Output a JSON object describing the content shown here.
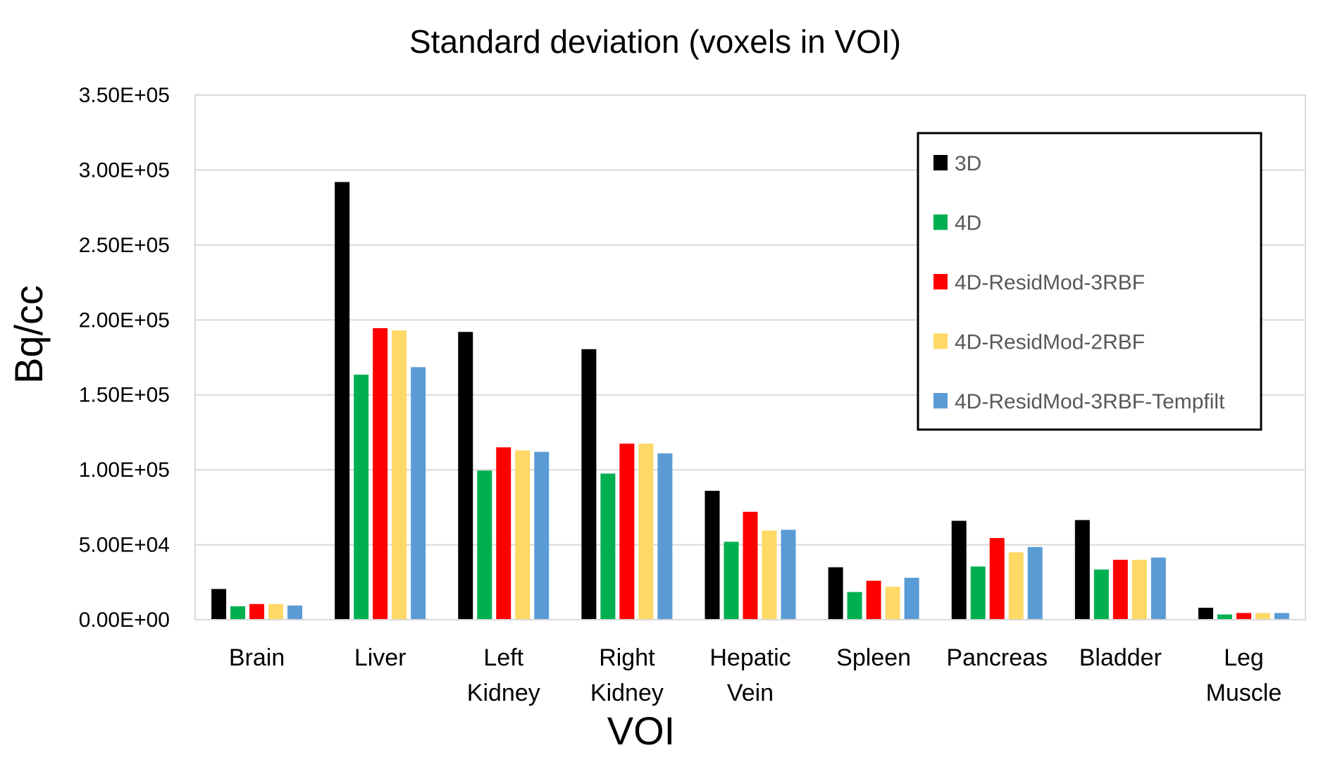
{
  "chart_data": {
    "type": "bar",
    "title": "Standard deviation (voxels in VOI)",
    "xlabel": "VOI",
    "ylabel": "Bq/cc",
    "ylim": [
      0,
      350000
    ],
    "ytick_values": [
      0,
      50000,
      100000,
      150000,
      200000,
      250000,
      300000,
      350000
    ],
    "ytick_labels": [
      "0.00E+00",
      "5.00E+04",
      "1.00E+05",
      "1.50E+05",
      "2.00E+05",
      "2.50E+05",
      "3.00E+05",
      "3.50E+05"
    ],
    "categories": [
      [
        "Brain"
      ],
      [
        "Liver"
      ],
      [
        "Left",
        "Kidney"
      ],
      [
        "Right",
        "Kidney"
      ],
      [
        "Hepatic",
        "Vein"
      ],
      [
        "Spleen"
      ],
      [
        "Pancreas"
      ],
      [
        "Bladder"
      ],
      [
        "Leg",
        "Muscle"
      ]
    ],
    "grid": "horizontal",
    "legend_position": "top-right",
    "series": [
      {
        "name": "3D",
        "color": "#000000",
        "values": [
          20500,
          292000,
          192000,
          180500,
          86000,
          35000,
          66000,
          66500,
          8000
        ]
      },
      {
        "name": "4D",
        "color": "#00b050",
        "values": [
          9000,
          163500,
          99500,
          97500,
          52000,
          18500,
          35500,
          33500,
          3500
        ]
      },
      {
        "name": "4D-ResidMod-3RBF",
        "color": "#ff0000",
        "values": [
          10500,
          194500,
          115000,
          117500,
          72000,
          26000,
          54500,
          40000,
          4500
        ]
      },
      {
        "name": "4D-ResidMod-2RBF",
        "color": "#ffd966",
        "values": [
          10500,
          193000,
          113000,
          117500,
          59500,
          22000,
          45000,
          40000,
          4500
        ]
      },
      {
        "name": "4D-ResidMod-3RBF-Tempfilt",
        "color": "#5b9bd5",
        "values": [
          9500,
          168500,
          112000,
          111000,
          60000,
          28000,
          48500,
          41500,
          4500
        ]
      }
    ]
  }
}
